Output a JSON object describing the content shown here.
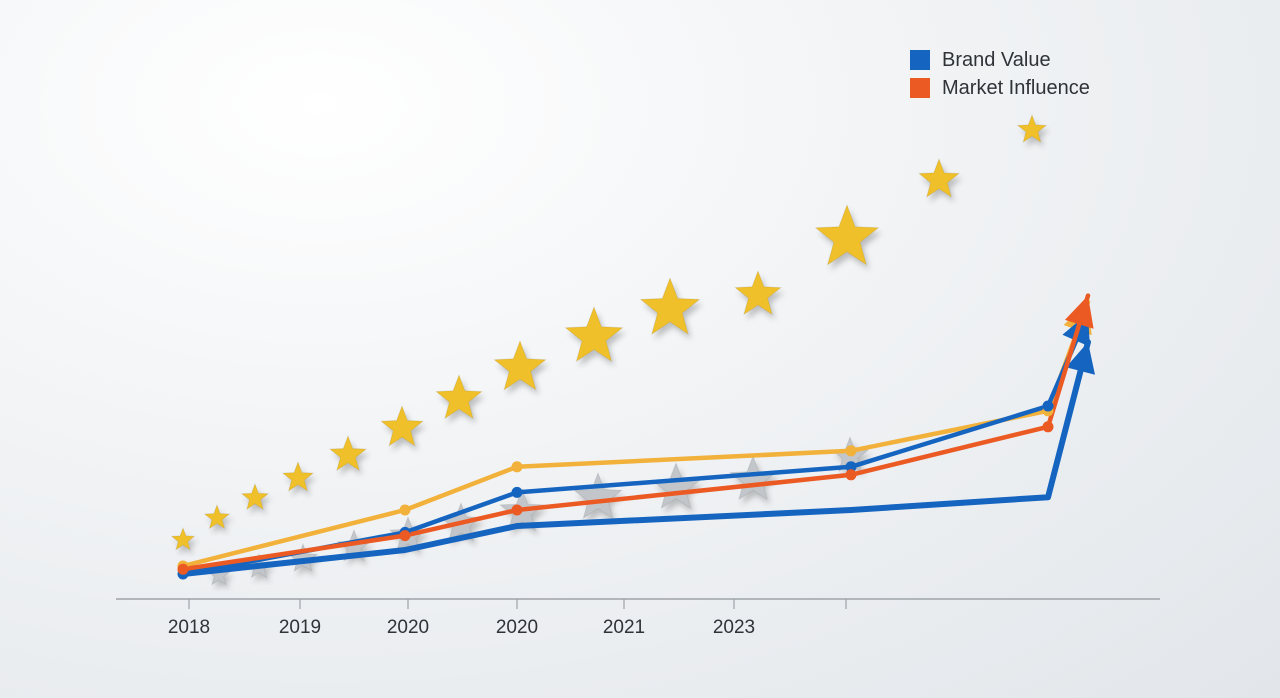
{
  "chart_data": {
    "type": "line",
    "x_tick_labels": [
      "2018",
      "2019",
      "2020",
      "2020",
      "2021",
      "2023"
    ],
    "series": [
      {
        "name": "Brand Value",
        "color": "#1565c0",
        "values": [
          1.0,
          3.6,
          6.1,
          7.7,
          11.5,
          17.3
        ]
      },
      {
        "name": "Market Influence",
        "color": "#ec5a24",
        "values": [
          1.3,
          3.4,
          5.0,
          7.2,
          10.2,
          18.4
        ]
      }
    ],
    "unlabeled_series": [
      {
        "color": "#f2b13a",
        "values": [
          1.5,
          5.0,
          7.7,
          8.7,
          11.2,
          18.0
        ]
      },
      {
        "color": "#1565c0",
        "values": [
          1.0,
          2.5,
          4.0,
          5.0,
          5.8,
          15.5
        ]
      }
    ],
    "decorations": {
      "gold_star_color": "#f0c02c",
      "silver_star_color": "#c2c6ca"
    },
    "grid": false,
    "legend_position": "top-right"
  }
}
